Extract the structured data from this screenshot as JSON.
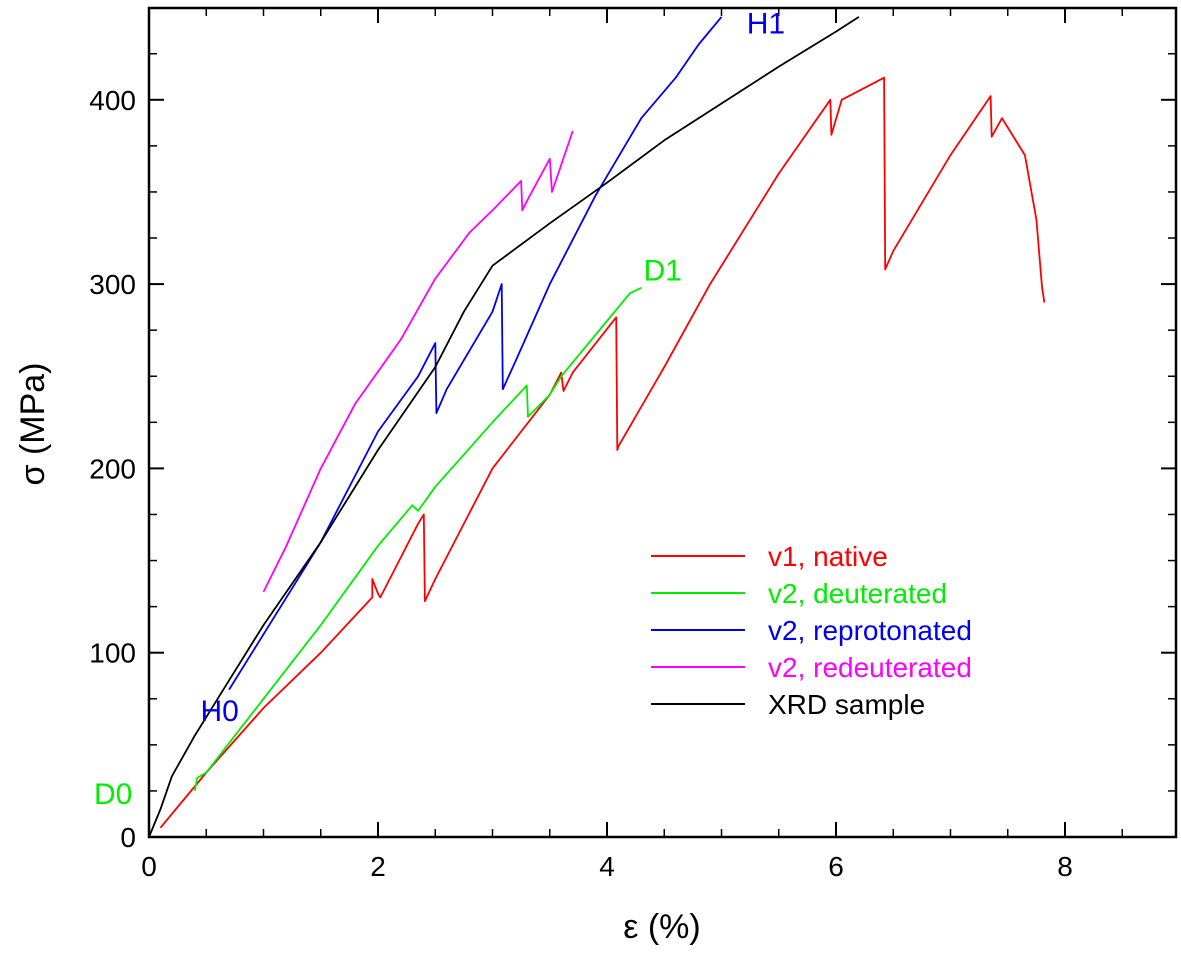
{
  "chart_data": {
    "type": "line",
    "title": "",
    "xlabel": "ε (%)",
    "ylabel": "σ (MPa)",
    "xlim": [
      0,
      9
    ],
    "ylim": [
      0,
      450
    ],
    "x_ticks": [
      0,
      2,
      4,
      6,
      8
    ],
    "x_tick_labels": [
      "0",
      "2",
      "4",
      "6",
      "8"
    ],
    "y_ticks": [
      0,
      100,
      200,
      300,
      400
    ],
    "y_tick_labels": [
      "0",
      "100",
      "200",
      "300",
      "400"
    ],
    "grid": false,
    "legend_position": "bottom-right",
    "annotations": [
      {
        "text": "H0",
        "x": 0.45,
        "y": 63,
        "color": "#0000ee"
      },
      {
        "text": "D0",
        "x": 0.0,
        "y": 18,
        "color": "#00ee00"
      },
      {
        "text": "H1",
        "x": 5.22,
        "y": 436,
        "color": "#0000ee"
      },
      {
        "text": "D1",
        "x": 4.32,
        "y": 302,
        "color": "#00ee00"
      }
    ],
    "series": [
      {
        "name": "v1, native",
        "color": "#ff0000",
        "points": [
          [
            0.1,
            5
          ],
          [
            0.5,
            35
          ],
          [
            1.0,
            70
          ],
          [
            1.5,
            100
          ],
          [
            1.95,
            130
          ],
          [
            1.95,
            140
          ],
          [
            2.0,
            132
          ],
          [
            2.02,
            130
          ],
          [
            2.35,
            170
          ],
          [
            2.4,
            175
          ],
          [
            2.41,
            128
          ],
          [
            2.5,
            140
          ],
          [
            3.0,
            200
          ],
          [
            3.5,
            240
          ],
          [
            3.6,
            252
          ],
          [
            3.62,
            242
          ],
          [
            3.7,
            252
          ],
          [
            4.08,
            282
          ],
          [
            4.09,
            210
          ],
          [
            4.1,
            212
          ],
          [
            4.5,
            255
          ],
          [
            4.9,
            300
          ],
          [
            5.5,
            360
          ],
          [
            5.95,
            400
          ],
          [
            5.96,
            381
          ],
          [
            6.05,
            400
          ],
          [
            6.42,
            412
          ],
          [
            6.43,
            308
          ],
          [
            6.5,
            318
          ],
          [
            7.0,
            370
          ],
          [
            7.35,
            402
          ],
          [
            7.36,
            380
          ],
          [
            7.45,
            390
          ],
          [
            7.65,
            370
          ],
          [
            7.75,
            335
          ],
          [
            7.8,
            298
          ],
          [
            7.82,
            290
          ]
        ]
      },
      {
        "name": "v2, deuterated",
        "color": "#00ee00",
        "points": [
          [
            0.4,
            25
          ],
          [
            0.42,
            32
          ],
          [
            0.5,
            35
          ],
          [
            1.0,
            75
          ],
          [
            1.5,
            115
          ],
          [
            2.0,
            158
          ],
          [
            2.3,
            180
          ],
          [
            2.35,
            177
          ],
          [
            2.5,
            190
          ],
          [
            3.0,
            225
          ],
          [
            3.3,
            245
          ],
          [
            3.31,
            228
          ],
          [
            3.5,
            240
          ],
          [
            3.6,
            250
          ],
          [
            4.0,
            280
          ],
          [
            4.2,
            295
          ],
          [
            4.3,
            298
          ]
        ]
      },
      {
        "name": "v2, reprotonated",
        "color": "#0000ee",
        "points": [
          [
            0.7,
            80
          ],
          [
            1.0,
            110
          ],
          [
            1.5,
            160
          ],
          [
            2.0,
            220
          ],
          [
            2.35,
            250
          ],
          [
            2.5,
            268
          ],
          [
            2.51,
            230
          ],
          [
            2.6,
            243
          ],
          [
            3.0,
            285
          ],
          [
            3.08,
            300
          ],
          [
            3.09,
            243
          ],
          [
            3.2,
            258
          ],
          [
            3.5,
            300
          ],
          [
            3.9,
            348
          ],
          [
            4.3,
            390
          ],
          [
            4.6,
            412
          ],
          [
            4.8,
            430
          ],
          [
            5.0,
            445
          ]
        ]
      },
      {
        "name": "v2, redeuterated",
        "color": "#ff00ff",
        "points": [
          [
            1.0,
            133
          ],
          [
            1.2,
            158
          ],
          [
            1.5,
            200
          ],
          [
            1.8,
            235
          ],
          [
            2.2,
            270
          ],
          [
            2.5,
            303
          ],
          [
            2.8,
            328
          ],
          [
            3.0,
            340
          ],
          [
            3.25,
            356
          ],
          [
            3.26,
            340
          ],
          [
            3.3,
            345
          ],
          [
            3.5,
            368
          ],
          [
            3.52,
            350
          ],
          [
            3.7,
            383
          ]
        ]
      },
      {
        "name": "XRD sample",
        "color": "#000000",
        "points": [
          [
            0.0,
            0
          ],
          [
            0.1,
            15
          ],
          [
            0.2,
            33
          ],
          [
            0.4,
            55
          ],
          [
            0.7,
            85
          ],
          [
            1.0,
            115
          ],
          [
            1.5,
            160
          ],
          [
            2.0,
            210
          ],
          [
            2.5,
            255
          ],
          [
            2.75,
            285
          ],
          [
            3.0,
            310
          ],
          [
            3.5,
            333
          ],
          [
            4.0,
            355
          ],
          [
            4.5,
            378
          ],
          [
            5.0,
            398
          ],
          [
            5.5,
            418
          ],
          [
            6.0,
            437
          ],
          [
            6.2,
            445
          ]
        ]
      }
    ]
  }
}
